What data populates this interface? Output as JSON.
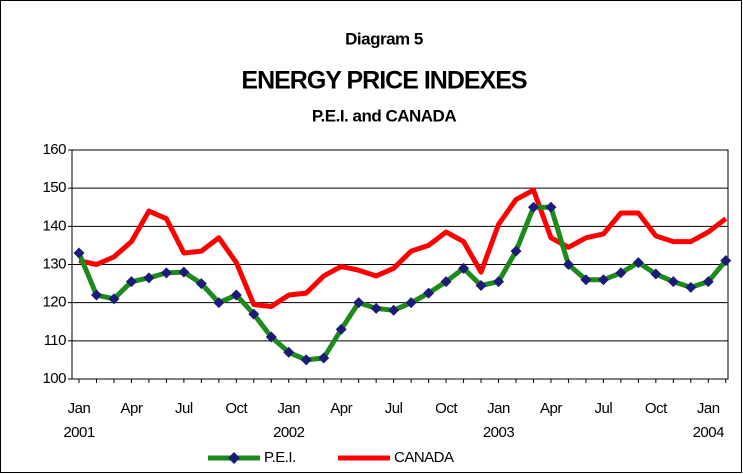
{
  "chart_data": {
    "type": "line",
    "subtitle_top": "Diagram 5",
    "title": "ENERGY PRICE INDEXES",
    "subtitle": "P.E.I. and CANADA",
    "categories": [
      "Jan",
      null,
      null,
      "Apr",
      null,
      null,
      "Jul",
      null,
      null,
      "Oct",
      null,
      null,
      "Jan",
      null,
      null,
      "Apr",
      null,
      null,
      "Jul",
      null,
      null,
      "Oct",
      null,
      null,
      "Jan",
      null,
      null,
      "Apr",
      null,
      null,
      "Jul",
      null,
      null,
      "Oct",
      null,
      null,
      "Jan",
      null
    ],
    "year_labels": [
      "2001",
      null,
      null,
      null,
      null,
      null,
      null,
      null,
      null,
      null,
      null,
      null,
      "2002",
      null,
      null,
      null,
      null,
      null,
      null,
      null,
      null,
      null,
      null,
      null,
      "2003",
      null,
      null,
      null,
      null,
      null,
      null,
      null,
      null,
      null,
      null,
      null,
      "2004",
      null
    ],
    "series": [
      {
        "name": "P.E.I.",
        "color": "#1e8a1e",
        "marker_color": "#1c1c78",
        "values": [
          133,
          122,
          121,
          125.5,
          126.5,
          127.8,
          128,
          125,
          120,
          122,
          117,
          111,
          107,
          105,
          105.5,
          113,
          120,
          118.5,
          118,
          120,
          122.5,
          125.5,
          129,
          124.5,
          125.5,
          133.5,
          145,
          145,
          130,
          126,
          126,
          127.8,
          130.5,
          127.5,
          125.5,
          124,
          125.5,
          131
        ]
      },
      {
        "name": "CANADA",
        "color": "#ff0000",
        "values": [
          131,
          130,
          132,
          136,
          144,
          142,
          133,
          133.5,
          137,
          130.5,
          119.5,
          119,
          122,
          122.5,
          127,
          129.5,
          128.5,
          127,
          129,
          133.5,
          135,
          138.5,
          136,
          128,
          140.5,
          147,
          149.5,
          137,
          134.5,
          137,
          138,
          143.5,
          143.5,
          137.5,
          136,
          136,
          138.5,
          142
        ]
      }
    ],
    "ylim": [
      100,
      160
    ],
    "yticks": [
      100,
      110,
      120,
      130,
      140,
      150,
      160
    ],
    "grid": true
  }
}
